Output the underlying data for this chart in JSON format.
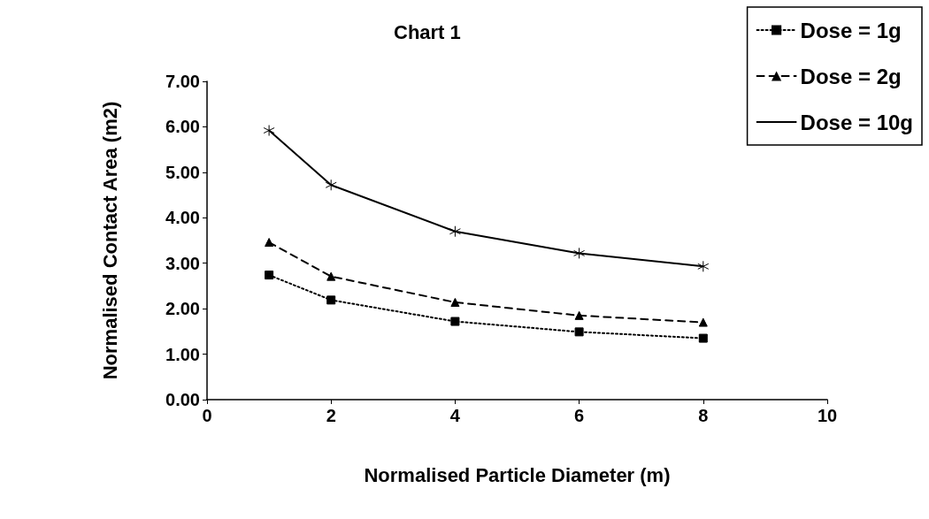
{
  "chart_data": {
    "type": "line",
    "title": "Chart 1",
    "xlabel": "Normalised Particle Diameter (m)",
    "ylabel": "Normalised Contact Area (m2)",
    "x": [
      1,
      2,
      4,
      6,
      8
    ],
    "series": [
      {
        "name": "Dose = 1g",
        "color": "#000000",
        "marker": "square",
        "line_style": "dotted",
        "values": [
          2.74,
          2.19,
          1.72,
          1.49,
          1.35
        ]
      },
      {
        "name": "Dose = 2g",
        "color": "#000000",
        "marker": "triangle",
        "line_style": "dashed",
        "values": [
          3.46,
          2.71,
          2.14,
          1.85,
          1.7
        ]
      },
      {
        "name": "Dose = 10g",
        "color": "#000000",
        "marker": "cross",
        "line_style": "solid",
        "values": [
          5.92,
          4.72,
          3.7,
          3.22,
          2.93
        ]
      }
    ],
    "xlim": [
      0,
      10
    ],
    "xticks": [
      0,
      2,
      4,
      6,
      8,
      10
    ],
    "ylim": [
      0,
      7
    ],
    "yticks": [
      {
        "value": 0,
        "label": "0.00"
      },
      {
        "value": 1,
        "label": "1.00"
      },
      {
        "value": 2,
        "label": "2.00"
      },
      {
        "value": 3,
        "label": "3.00"
      },
      {
        "value": 4,
        "label": "4.00"
      },
      {
        "value": 5,
        "label": "5.00"
      },
      {
        "value": 6,
        "label": "6.00"
      },
      {
        "value": 7,
        "label": "7.00"
      }
    ],
    "grid": false,
    "legend": "top right"
  }
}
